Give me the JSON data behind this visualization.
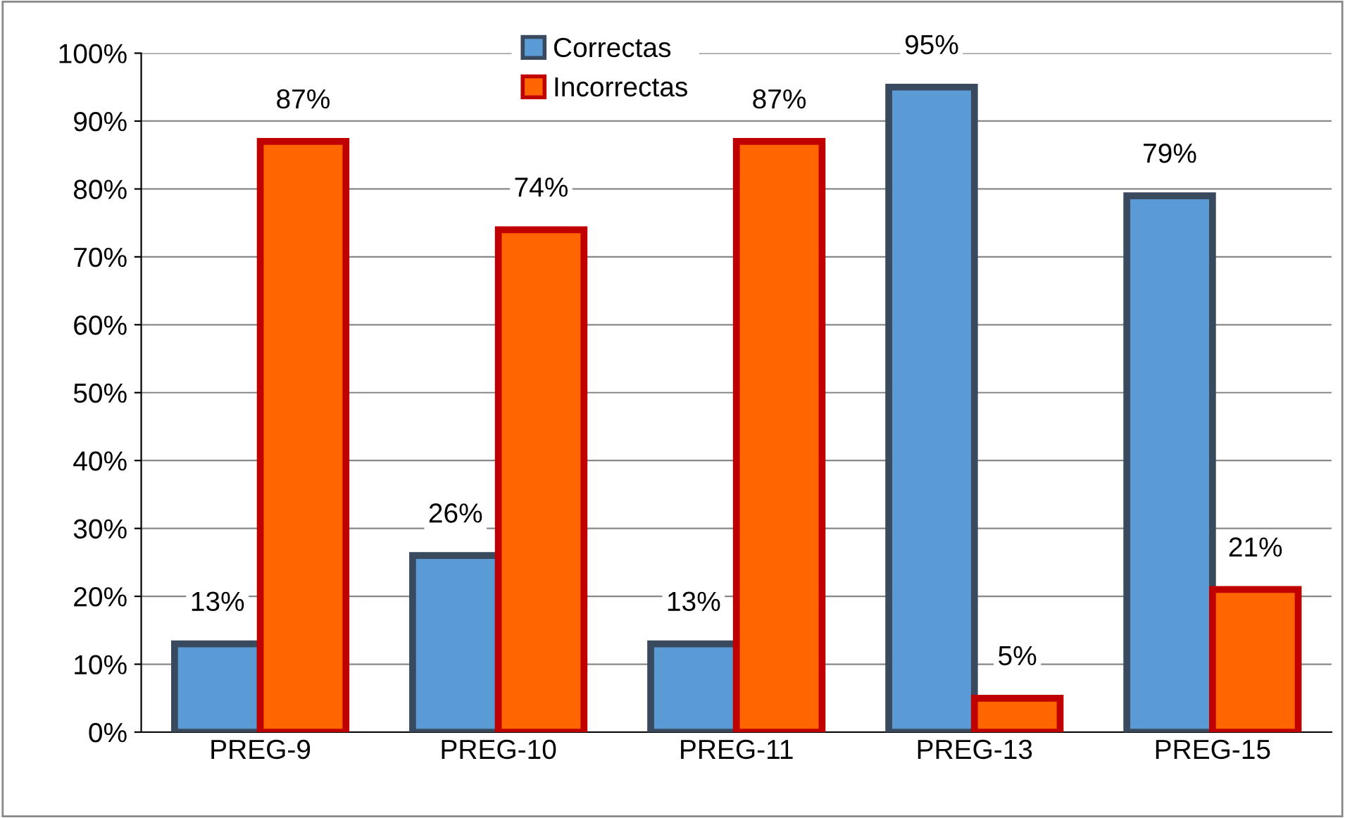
{
  "chart_data": {
    "type": "bar",
    "categories": [
      "PREG-9",
      "PREG-10",
      "PREG-11",
      "PREG-13",
      "PREG-15"
    ],
    "series": [
      {
        "name": "Correctas",
        "color": "#5b9bd5",
        "values": [
          13,
          26,
          13,
          95,
          79
        ],
        "value_labels": [
          "13%",
          "26%",
          "13%",
          "95%",
          "79%"
        ]
      },
      {
        "name": "Incorrectas",
        "color": "#ff6600",
        "values": [
          87,
          74,
          87,
          5,
          21
        ],
        "value_labels": [
          "87%",
          "74%",
          "87%",
          "5%",
          "21%"
        ]
      }
    ],
    "ylim": [
      0,
      100
    ],
    "yticks": [
      {
        "value": 0,
        "label": "0%"
      },
      {
        "value": 10,
        "label": "10%"
      },
      {
        "value": 20,
        "label": "20%"
      },
      {
        "value": 30,
        "label": "30%"
      },
      {
        "value": 40,
        "label": "40%"
      },
      {
        "value": 50,
        "label": "50%"
      },
      {
        "value": 60,
        "label": "60%"
      },
      {
        "value": 70,
        "label": "70%"
      },
      {
        "value": 80,
        "label": "80%"
      },
      {
        "value": 90,
        "label": "90%"
      },
      {
        "value": 100,
        "label": "100%"
      }
    ],
    "grid": "y",
    "legend": "top"
  }
}
